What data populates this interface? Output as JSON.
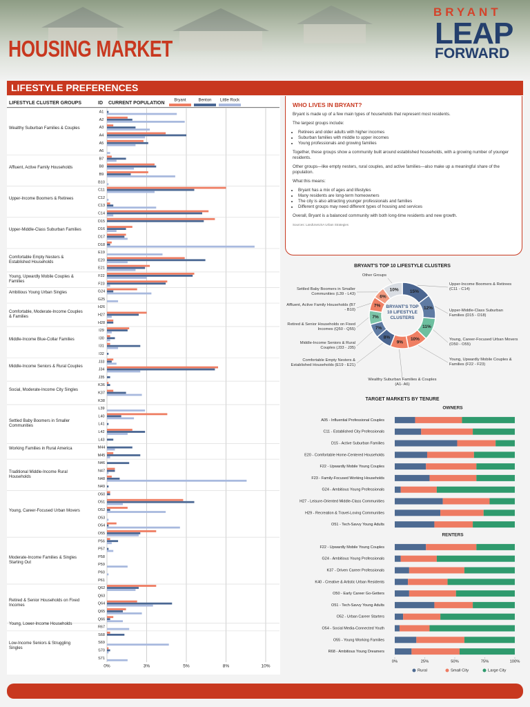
{
  "header": {
    "title": "HOUSING MARKET",
    "logo": [
      "BRYANT",
      "LEAP",
      "FORWARD"
    ]
  },
  "panel": {
    "title": "WHO LIVES IN BRYANT?",
    "content": [
      "Bryant is made up of a few main types of households that represent most residents.",
      "The largest groups include:",
      [
        "Retirees and older adults with higher incomes",
        "Suburban families with middle to upper incomes",
        "Young professionals and growing families"
      ],
      "Together, these groups show a community built around established households, with a growing number of younger residents.",
      "Other groups—like empty nesters, rural couples, and active families—also make up a meaningful share of the population.",
      "What this means:",
      [
        "Bryant has a mix of ages and lifestyles",
        "Many residents are long-term homeowners",
        "The city is also attracting younger professionals and families",
        "Different groups may need different types of housing and services"
      ],
      "Overall, Bryant is a balanced community with both long-time residents and new growth."
    ],
    "source": "Sources: LandUseUSA Urban Strategies"
  },
  "chart_data": [
    {
      "type": "bar",
      "orientation": "horizontal",
      "title": "LIFESTYLE PREFERENCES",
      "group_header": "LIFESTYLE CLUSTER GROUPS",
      "id_header": "ID",
      "value_header": "CURRENT POPULATION",
      "groups": [
        "Wealthy Suburban Families & Couples",
        "Affluent, Active Family Households",
        "Upper-Income Boomers & Retirees",
        "Upper-Middle-Class Suburban Families",
        "Comfortable Empty Nesters & Established Households",
        "Young, Upwardly Mobile Couples & Families",
        "Ambitious Young Urban Singles",
        "Comfortable, Moderate-Income Couples & Families",
        "Middle-Income Blue-Collar Families",
        "Middle-Income Seniors & Rural Couples",
        "Social, Moderate-Income City Singles",
        "Settled Baby Boomers in Smaller Communities",
        "Working Families in Rural America",
        "Traditional Middle-Income Rural Households",
        "Young, Career-Focused Urban Movers",
        "Moderate-Income Families & Singles Starting Out",
        "Retired & Senior Households on Fixed Incomes",
        "Young, Lower-Income Households",
        "Low-Income Seniors & Struggling Singles"
      ],
      "categories": [
        "A1",
        "A2",
        "A3",
        "A4",
        "A5",
        "A6",
        "B7",
        "B8",
        "B9",
        "B10",
        "C11",
        "C12",
        "C13",
        "C14",
        "D15",
        "D16",
        "D17",
        "D18",
        "E19",
        "E20",
        "E21",
        "F22",
        "F23",
        "G24",
        "G25",
        "H26",
        "H27",
        "H28",
        "I29",
        "I30",
        "I31",
        "I32",
        "J33",
        "J34",
        "J35",
        "K36",
        "K37",
        "K38",
        "L39",
        "L40",
        "L41",
        "L42",
        "L43",
        "M44",
        "M45",
        "N46",
        "N47",
        "N48",
        "N49",
        "O50",
        "O51",
        "O52",
        "O53",
        "O54",
        "O55",
        "P56",
        "P57",
        "P58",
        "P59",
        "P60",
        "P61",
        "Q62",
        "Q63",
        "Q64",
        "Q65",
        "Q66",
        "R67",
        "S68",
        "S69",
        "S70",
        "S71"
      ],
      "series": [
        {
          "name": "Bryant",
          "color": "#ee7d62",
          "values": [
            0,
            1.3,
            0.4,
            3.7,
            2.3,
            0,
            0.3,
            3.0,
            2.6,
            0,
            7.5,
            0,
            0.2,
            6.4,
            6.8,
            1.6,
            1.2,
            0.3,
            0,
            4.9,
            2.7,
            5.5,
            3.8,
            1.9,
            0,
            0,
            2.5,
            0.4,
            1.4,
            0.2,
            0.2,
            0,
            0.4,
            7.0,
            0,
            0.1,
            0.4,
            0,
            0,
            3.8,
            0,
            1.6,
            0,
            0,
            0.4,
            0,
            0.5,
            0.3,
            0,
            0.2,
            4.8,
            1.3,
            0,
            0.6,
            3.1,
            0.2,
            0,
            0,
            0,
            0,
            0,
            3.1,
            0,
            1.9,
            1.2,
            0.4,
            0,
            0.2,
            0,
            0.1,
            0
          ]
        },
        {
          "name": "Benton",
          "color": "#4a6793",
          "values": [
            0.1,
            1.6,
            1.8,
            5.0,
            2.6,
            0,
            1.2,
            3.1,
            1.5,
            0,
            5.5,
            0,
            0.4,
            6.0,
            6.1,
            1.2,
            1.1,
            0.2,
            0,
            6.2,
            2.4,
            5.4,
            3.7,
            0.4,
            0,
            0,
            2.0,
            0.4,
            1.3,
            0.5,
            2.1,
            0.1,
            0.3,
            6.8,
            0.2,
            0.2,
            1.2,
            0,
            0,
            0.9,
            0.1,
            2.4,
            0.4,
            1.6,
            2.1,
            1.4,
            0.5,
            0.8,
            0.1,
            0.2,
            5.5,
            0.2,
            0,
            0.1,
            2.1,
            0.7,
            0.1,
            0,
            0,
            0,
            0,
            2.0,
            0,
            4.1,
            1.0,
            0.2,
            0,
            1.1,
            0,
            0.2,
            0
          ]
        },
        {
          "name": "Little Rock",
          "color": "#a8b9de",
          "values": [
            4.4,
            4.9,
            2.7,
            2.4,
            1.8,
            0.2,
            0.6,
            1.7,
            4.3,
            0.1,
            3.0,
            0.1,
            3.1,
            0.4,
            0,
            0.6,
            1.3,
            9.3,
            3.5,
            1.3,
            1.8,
            2.5,
            0.2,
            2.8,
            0.7,
            0,
            0.3,
            0,
            0.3,
            0.2,
            0.7,
            0,
            0.6,
            2.1,
            0,
            0,
            2.2,
            0,
            2.4,
            1.7,
            0,
            1.3,
            0,
            0.5,
            0.2,
            0,
            0.1,
            8.8,
            0,
            0,
            1.0,
            3.7,
            0.1,
            4.6,
            2.0,
            0.3,
            0.4,
            0,
            1.3,
            0.1,
            0,
            1.8,
            0,
            2.9,
            2.2,
            1.0,
            1.4,
            0,
            3.9,
            0.1,
            1.3
          ]
        }
      ],
      "xlim": [
        0,
        10
      ],
      "xticks": [
        {
          "value": 0,
          "label": "0%"
        },
        {
          "value": 2.5,
          "label": "3%"
        },
        {
          "value": 5,
          "label": "5%"
        },
        {
          "value": 7.5,
          "label": "8%"
        },
        {
          "value": 10,
          "label": "10%"
        }
      ],
      "grid": true
    },
    {
      "type": "pie",
      "donut": true,
      "title": "BRYANT'S TOP 10 LIFESTYLE CLUSTERS",
      "center_label": "BRYANT'S TOP 10 LIFESTYLE CLUSTERS",
      "categories": [
        "Upper-Income Boomers & Retirees (C11 - C14)",
        "Upper-Middle-Class Suburban Families (D15 - D18)",
        "Young, Career-Focused Urban Movers (O50 - O55)",
        "Young, Upwardly Mobile Couples & Families (F22 - F23)",
        "Wealthy Suburban Families & Couples (A1- A6)",
        "Comfortable Empty Nesters & Established Households (E19 - E21)",
        "Middle-Income Seniors & Rural Couples (J33 - J35)",
        "Retired & Senior Households on Fixed Incomes (Q50 - Q55)",
        "Affluent, Active Family Households (B7 - B10)",
        "Settled Baby Boomers in Smaller Communities (L39 - L43)",
        "Other Groups"
      ],
      "values": [
        15,
        12,
        11,
        10,
        9,
        8,
        7,
        7,
        7,
        6,
        10
      ],
      "value_labels": [
        "15%",
        "12%",
        "11%",
        "10%",
        "9%",
        "8%",
        "7%",
        "7%",
        "7%",
        "6%",
        "10%"
      ],
      "colors": [
        "#4a6590",
        "#5f7ba3",
        "#6dbf9f",
        "#ef7f63",
        "#ef7f63",
        "#4a6590",
        "#5f7ba3",
        "#7cc4a8",
        "#ef7f63",
        "#f29a80",
        "#d9dde3"
      ]
    },
    {
      "type": "stacked_bar",
      "orientation": "horizontal",
      "title": "TARGET MARKETS BY TENURE",
      "series": [
        {
          "name": "Rural",
          "color": "#4d6a91"
        },
        {
          "name": "Small City",
          "color": "#ee7b62"
        },
        {
          "name": "Large City",
          "color": "#2f9a6d"
        }
      ],
      "panels": [
        {
          "subtitle": "OWNERS",
          "categories": [
            "A05 - Influential Professional Couples",
            "C11 - Established City Professionals",
            "D15 - Active Suburban Families",
            "E20 - Comfortable Home-Centered Households",
            "F22 - Upwardly Mobile Young Couples",
            "F23 - Family-Focused Working Households",
            "G24 - Ambitious Young Professionals",
            "H27 - Leisure-Oriented Middle-Class Communities",
            "H29 - Recreation & Travel-Loving Communities",
            "O51 - Tech-Savvy Young Adults"
          ],
          "values": [
            [
              17,
              39,
              44
            ],
            [
              22,
              43,
              35
            ],
            [
              52,
              32,
              16
            ],
            [
              27,
              39,
              34
            ],
            [
              26,
              42,
              32
            ],
            [
              29,
              39,
              32
            ],
            [
              5,
              30,
              65
            ],
            [
              40,
              39,
              21
            ],
            [
              38,
              36,
              26
            ],
            [
              33,
              32,
              35
            ]
          ]
        },
        {
          "subtitle": "RENTERS",
          "categories": [
            "F22 - Upwardly Mobile Young Couples",
            "G24 - Ambitious Young Professionals",
            "K37 - Driven Career Professionals",
            "K40 - Creative & Artistic Urban Residents",
            "O50 - Early Career Go-Getters",
            "O51 - Tech-Savvy Young Adults",
            "O52 - Urban Career Starters",
            "O54 - Social Media-Connected Youth",
            "O55 - Young Working Families",
            "R68 - Ambitious Young Dreamers"
          ],
          "values": [
            [
              26,
              42,
              32
            ],
            [
              5,
              30,
              65
            ],
            [
              12,
              46,
              42
            ],
            [
              11,
              33,
              56
            ],
            [
              12,
              39,
              49
            ],
            [
              33,
              32,
              35
            ],
            [
              7,
              31,
              62
            ],
            [
              4,
              25,
              71
            ],
            [
              18,
              40,
              42
            ],
            [
              14,
              40,
              46
            ]
          ]
        }
      ],
      "xlim": [
        0,
        100
      ],
      "xticks": [
        {
          "value": 0,
          "label": "0%"
        },
        {
          "value": 25,
          "label": "25%"
        },
        {
          "value": 50,
          "label": "50%"
        },
        {
          "value": 75,
          "label": "75%"
        },
        {
          "value": 100,
          "label": "100%"
        }
      ]
    }
  ]
}
